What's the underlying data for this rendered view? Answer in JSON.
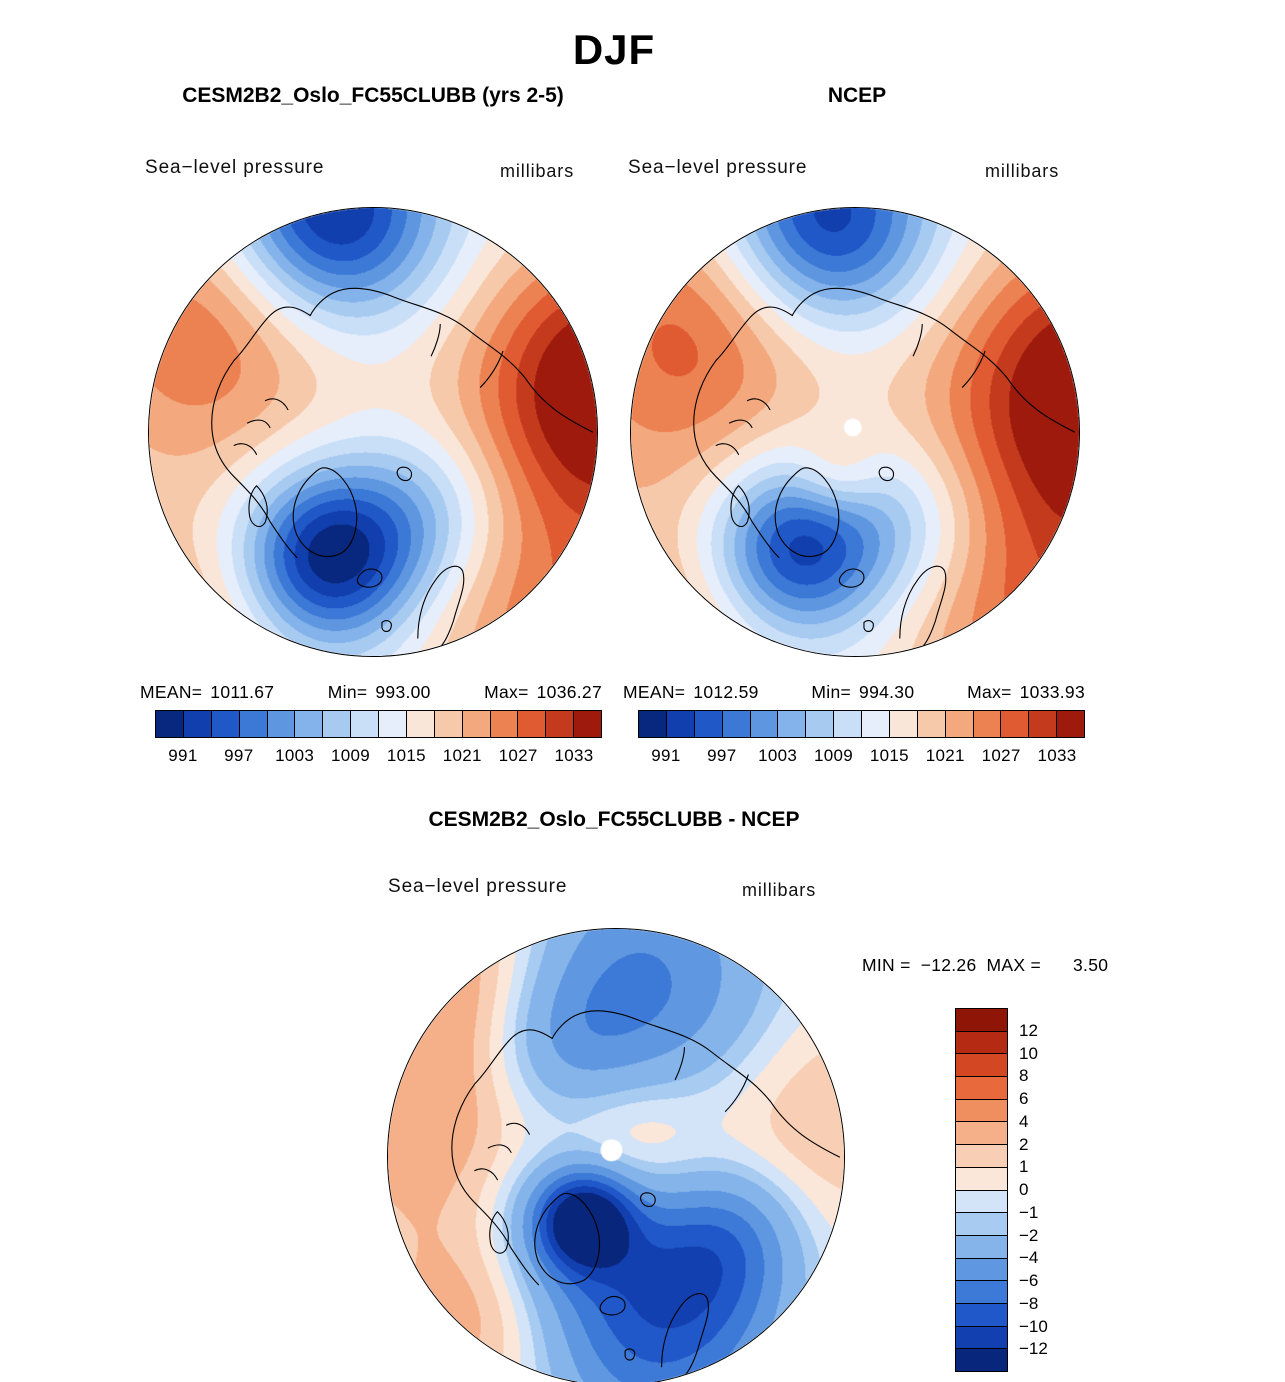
{
  "title": "DJF",
  "panels": [
    {
      "title": "CESM2B2_Oslo_FC55CLUBB (yrs 2-5)",
      "field_label": "Sea−level pressure",
      "units_label": "millibars",
      "stats": {
        "mean_label": "MEAN=",
        "mean": "1011.67",
        "min_label": "Min=",
        "min": "993.00",
        "max_label": "Max=",
        "max": "1036.27"
      },
      "colorbar_ticks": [
        "991",
        "997",
        "1003",
        "1009",
        "1015",
        "1021",
        "1027",
        "1033"
      ]
    },
    {
      "title": "NCEP",
      "field_label": "Sea−level pressure",
      "units_label": "millibars",
      "stats": {
        "mean_label": "MEAN=",
        "mean": "1012.59",
        "min_label": "Min=",
        "min": "994.30",
        "max_label": "Max=",
        "max": "1033.93"
      },
      "colorbar_ticks": [
        "991",
        "997",
        "1003",
        "1009",
        "1015",
        "1021",
        "1027",
        "1033"
      ]
    }
  ],
  "diff_panel": {
    "title": "CESM2B2_Oslo_FC55CLUBB - NCEP",
    "field_label": "Sea−level pressure",
    "units_label": "millibars",
    "stats": {
      "min_label": "MIN =",
      "min": "−12.26",
      "max_label": "MAX =",
      "max": "3.50"
    },
    "colorbar_ticks": [
      "12",
      "10",
      "8",
      "6",
      "4",
      "2",
      "1",
      "0",
      "−1",
      "−2",
      "−4",
      "−6",
      "−8",
      "−10",
      "−12"
    ]
  },
  "colors": {
    "background": "#ffffff",
    "coastline": "#000000",
    "slp_palette": [
      "#08277e",
      "#123fae",
      "#2058c8",
      "#3c79d6",
      "#5e97e0",
      "#83b3ea",
      "#a7caf1",
      "#c9def7",
      "#e6eefb",
      "#fae6d9",
      "#f7c9ab",
      "#f3a87e",
      "#ec8252",
      "#e05b31",
      "#c43a1c",
      "#9e1a0c"
    ],
    "diff_palette": [
      "#07267c",
      "#1240b0",
      "#2158c9",
      "#3d7ad7",
      "#5f98e1",
      "#84b4ea",
      "#a8cbf1",
      "#d3e4f8",
      "#fbe7da",
      "#f8cfb4",
      "#f5b08a",
      "#ef8f60",
      "#e8693c",
      "#d44723",
      "#b52a12",
      "#8f1507"
    ]
  },
  "chart_data": [
    {
      "type": "heatmap",
      "subtype": "filled-contour-map",
      "projection": "north-polar-stereographic",
      "season": "DJF",
      "title": "CESM2B2_Oslo_FC55CLUBB (yrs 2-5)",
      "variable": "Sea-level pressure",
      "units": "millibars",
      "stats": {
        "mean": 1011.67,
        "min": 993.0,
        "max": 1036.27
      },
      "contour_interval_mb": 3,
      "colorbar_tick_values": [
        991,
        997,
        1003,
        1009,
        1015,
        1021,
        1027,
        1033
      ],
      "features": [
        {
          "feature": "low",
          "location": "North Pacific / Aleutian sector (top of disk)"
        },
        {
          "feature": "deep low",
          "location": "Iceland / North Atlantic sector (bottom-center)",
          "approx_min_mb": 993
        },
        {
          "feature": "strong high",
          "location": "Siberia sector (right edge)",
          "approx_max_mb": 1036
        },
        {
          "feature": "weak high",
          "location": "North America sector (left)"
        }
      ]
    },
    {
      "type": "heatmap",
      "subtype": "filled-contour-map",
      "projection": "north-polar-stereographic",
      "season": "DJF",
      "title": "NCEP",
      "variable": "Sea-level pressure",
      "units": "millibars",
      "stats": {
        "mean": 1012.59,
        "min": 994.3,
        "max": 1033.93
      },
      "contour_interval_mb": 3,
      "colorbar_tick_values": [
        991,
        997,
        1003,
        1009,
        1015,
        1021,
        1027,
        1033
      ],
      "features": [
        {
          "feature": "low",
          "location": "North Pacific / Aleutian sector (top of disk)"
        },
        {
          "feature": "deep low",
          "location": "Iceland / North Atlantic sector (bottom-center)",
          "approx_min_mb": 994
        },
        {
          "feature": "strong high",
          "location": "Siberia sector (right edge)",
          "approx_max_mb": 1034
        },
        {
          "feature": "weak high",
          "location": "North America sector (left)"
        }
      ]
    },
    {
      "type": "heatmap",
      "subtype": "filled-contour-map",
      "projection": "north-polar-stereographic",
      "season": "DJF",
      "title": "CESM2B2_Oslo_FC55CLUBB - NCEP",
      "variable": "Sea-level pressure difference",
      "units": "millibars",
      "stats": {
        "min": -12.26,
        "max": 3.5
      },
      "colorbar_tick_values": [
        12,
        10,
        8,
        6,
        4,
        2,
        1,
        0,
        -1,
        -2,
        -4,
        -6,
        -8,
        -10,
        -12
      ],
      "features": [
        {
          "feature": "strong negative bias",
          "location": "Greenland / Iceland sector",
          "approx_min_mb": -12.26
        },
        {
          "feature": "negative bias",
          "location": "Scandinavia / northern Europe (bottom of disk)"
        },
        {
          "feature": "negative bias",
          "location": "eastern Siberia / Arctic (top of disk)"
        },
        {
          "feature": "weak positive bias",
          "location": "central Arctic and North America sectors",
          "approx_max_mb": 3.5
        }
      ]
    }
  ]
}
